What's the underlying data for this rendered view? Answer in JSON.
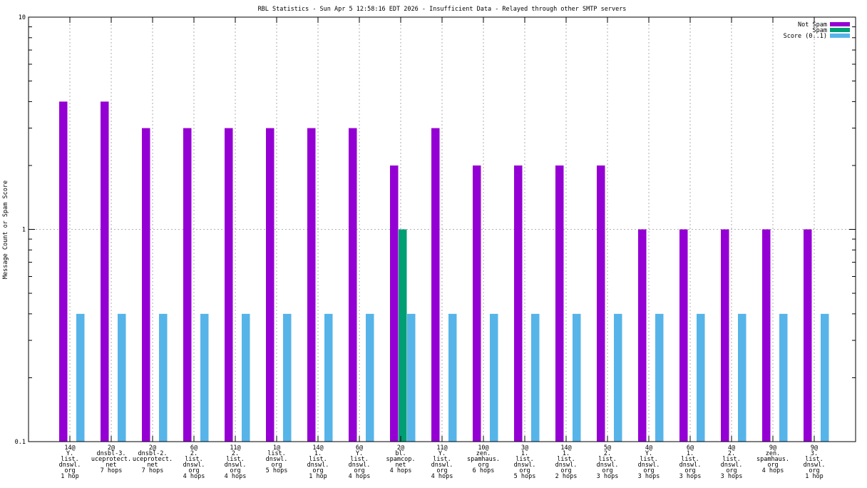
{
  "chart_data": {
    "type": "bar",
    "title": "RBL Statistics - Sun Apr  5 12:58:16 EDT 2026 - Insufficient Data - Relayed through other SMTP servers",
    "ylabel": "Message Count or Spam Score",
    "xlabel": "",
    "y_scale": "log",
    "ylim": [
      0.1,
      10
    ],
    "y_ticks": [
      "0.1",
      "1",
      "10"
    ],
    "grid": "horizontal dotted at decades, vertical dotted at each category",
    "legend_position": "top-right",
    "categories": [
      [
        "14@",
        "Y.",
        "list.",
        "dnswl.",
        "org",
        "1 hop"
      ],
      [
        "2@",
        "dnsbl-3.",
        "uceprotect.",
        "net",
        "7 hops"
      ],
      [
        "2@",
        "dnsbl-2.",
        "uceprotect.",
        "net",
        "7 hops"
      ],
      [
        "6@",
        "2.",
        "list.",
        "dnswl.",
        "org",
        "4 hops"
      ],
      [
        "11@",
        "2.",
        "list.",
        "dnswl.",
        "org",
        "4 hops"
      ],
      [
        "1@",
        "list.",
        "dnswl.",
        "org",
        "5 hops"
      ],
      [
        "14@",
        "1.",
        "list.",
        "dnswl.",
        "org",
        "1 hop"
      ],
      [
        "6@",
        "Y.",
        "list.",
        "dnswl.",
        "org",
        "4 hops"
      ],
      [
        "2@",
        "bl.",
        "spamcop.",
        "net",
        "4 hops"
      ],
      [
        "11@",
        "Y.",
        "list.",
        "dnswl.",
        "org",
        "4 hops"
      ],
      [
        "10@",
        "zen.",
        "spamhaus.",
        "org",
        "6 hops"
      ],
      [
        "3@",
        "1.",
        "list.",
        "dnswl.",
        "org",
        "5 hops"
      ],
      [
        "14@",
        "1.",
        "list.",
        "dnswl.",
        "org",
        "2 hops"
      ],
      [
        "5@",
        "2.",
        "list.",
        "dnswl.",
        "org",
        "3 hops"
      ],
      [
        "4@",
        "Y.",
        "list.",
        "dnswl.",
        "org",
        "3 hops"
      ],
      [
        "6@",
        "1.",
        "list.",
        "dnswl.",
        "org",
        "3 hops"
      ],
      [
        "4@",
        "2.",
        "list.",
        "dnswl.",
        "org",
        "3 hops"
      ],
      [
        "9@",
        "zen.",
        "spamhaus.",
        "org",
        "4 hops"
      ],
      [
        "9@",
        "3.",
        "list.",
        "dnswl.",
        "org",
        "1 hop"
      ]
    ],
    "series": [
      {
        "name": "Not Spam",
        "color": "#9400d3",
        "values": [
          4,
          4,
          3,
          3,
          3,
          3,
          3,
          3,
          2,
          3,
          2,
          2,
          2,
          2,
          1,
          1,
          1,
          1,
          1
        ]
      },
      {
        "name": "Spam",
        "color": "#009e73",
        "values": [
          0,
          0,
          0,
          0,
          0,
          0,
          0,
          0,
          1,
          0,
          0,
          0,
          0,
          0,
          0,
          0,
          0,
          0,
          0
        ]
      },
      {
        "name": "Score (0..1)",
        "color": "#56b4e9",
        "values": [
          0.4,
          0.4,
          0.4,
          0.4,
          0.4,
          0.4,
          0.4,
          0.4,
          0.4,
          0.4,
          0.4,
          0.4,
          0.4,
          0.4,
          0.4,
          0.4,
          0.4,
          0.4,
          0.4
        ]
      }
    ]
  }
}
